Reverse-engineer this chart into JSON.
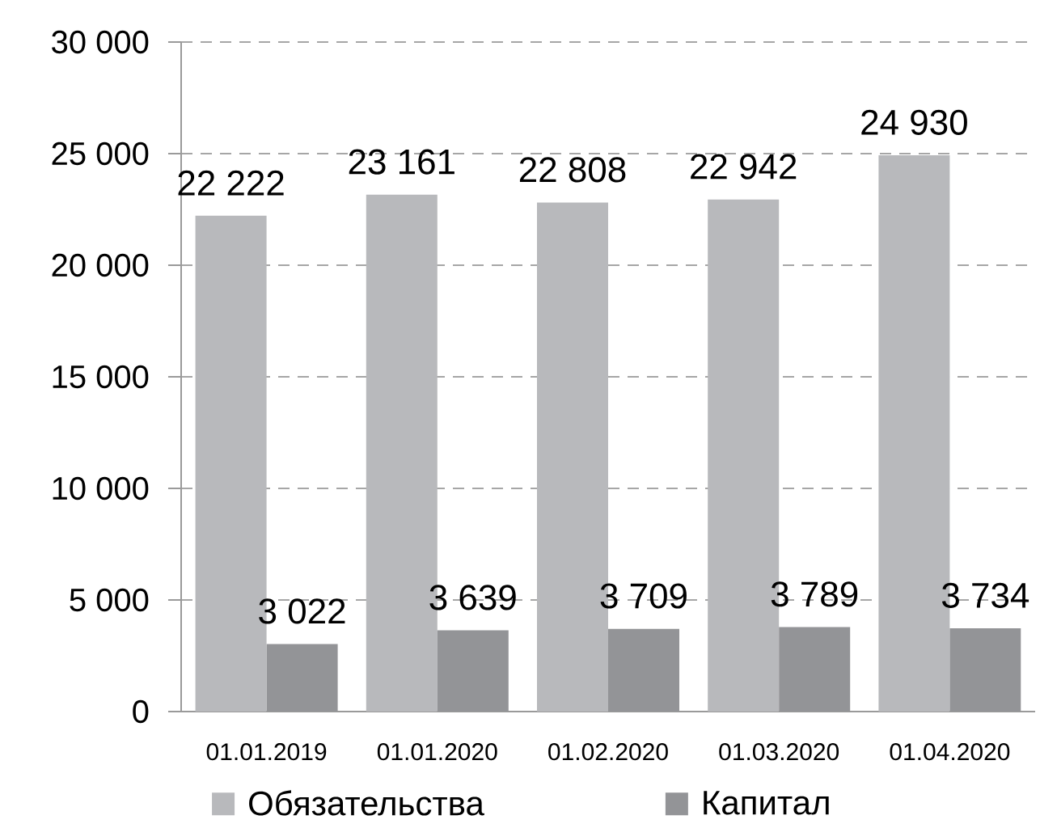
{
  "chart_data": {
    "type": "bar",
    "categories": [
      "01.01.2019",
      "01.01.2020",
      "01.02.2020",
      "01.03.2020",
      "01.04.2020"
    ],
    "series": [
      {
        "name": "Обязательства",
        "color": "#b8b9bc",
        "values": [
          22222,
          23161,
          22808,
          22942,
          24930
        ],
        "value_labels": [
          "22 222",
          "23 161",
          "22 808",
          "22 942",
          "24 930"
        ]
      },
      {
        "name": "Капитал",
        "color": "#939497",
        "values": [
          3022,
          3639,
          3709,
          3789,
          3734
        ],
        "value_labels": [
          "3 022",
          "3 639",
          "3 709",
          "3 789",
          "3 734"
        ]
      }
    ],
    "ylim": [
      0,
      30000
    ],
    "yticks": [
      0,
      {
        "value": 5000,
        "label": "5 000"
      },
      {
        "value": 10000,
        "label": "10 000"
      },
      {
        "value": 15000,
        "label": "15 000"
      },
      {
        "value": 20000,
        "label": "20 000"
      },
      {
        "value": 25000,
        "label": "25 000"
      },
      {
        "value": 30000,
        "label": "30 000"
      }
    ],
    "grid": "y",
    "legend": "bottom"
  }
}
